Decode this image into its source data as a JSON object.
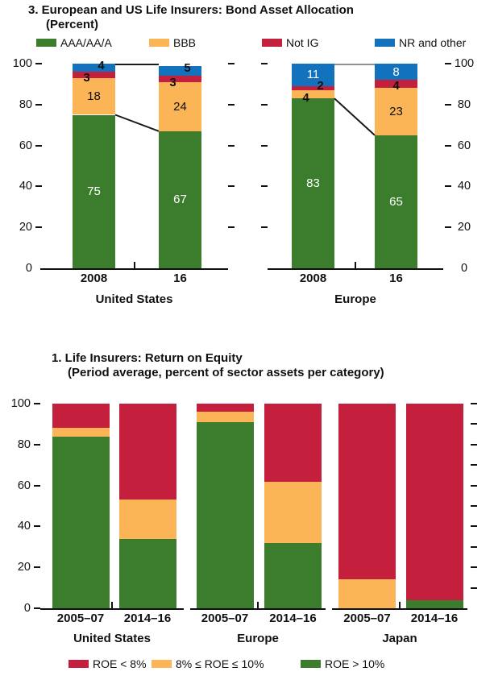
{
  "chart_data": [
    {
      "id": "bond-asset-allocation",
      "type": "bar",
      "stacked": true,
      "title": "3. European and US Life Insurers: Bond Asset Allocation",
      "subtitle": "(Percent)",
      "ylim": [
        0,
        100
      ],
      "yticks_left": [
        0,
        20,
        40,
        60,
        80,
        100
      ],
      "yticks_right": [
        0,
        20,
        40,
        60,
        80,
        100
      ],
      "grid": false,
      "legend_position": "top",
      "legend": [
        {
          "name": "AAA/AA/A",
          "color": "#3c7d2d"
        },
        {
          "name": "BBB",
          "color": "#fbb556"
        },
        {
          "name": "Not IG",
          "color": "#c41f3d"
        },
        {
          "name": "NR and other",
          "color": "#1272bd"
        }
      ],
      "stack_order_bottom_to_top": [
        "AAA/AA/A",
        "BBB",
        "Not IG",
        "NR and other"
      ],
      "value_labels_shown": true,
      "groups": [
        {
          "label": "United States",
          "categories": [
            "2008",
            "16"
          ],
          "values": {
            "AAA/AA/A": [
              75,
              67
            ],
            "BBB": [
              18,
              24
            ],
            "Not IG": [
              3,
              3
            ],
            "NR and other": [
              4,
              5
            ]
          }
        },
        {
          "label": "Europe",
          "categories": [
            "2008",
            "16"
          ],
          "values": {
            "AAA/AA/A": [
              83,
              65
            ],
            "BBB": [
              4,
              23
            ],
            "Not IG": [
              2,
              4
            ],
            "NR and other": [
              11,
              8
            ]
          }
        }
      ],
      "connector_lines": [
        {
          "group": "United States",
          "at": "bar tops (100)",
          "color": "#1a1a1a"
        },
        {
          "group": "United States",
          "from": 75,
          "to": 67,
          "at": "top of AAA/AA/A",
          "color": "#1a1a1a"
        },
        {
          "group": "Europe",
          "at": "bar tops (100)",
          "color": "#8f8f8f"
        },
        {
          "group": "Europe",
          "from": 83,
          "to": 65,
          "at": "top of AAA/AA/A",
          "color": "#1a1a1a"
        }
      ]
    },
    {
      "id": "life-insurers-roe",
      "type": "bar",
      "stacked": true,
      "title": "1. Life Insurers: Return on Equity",
      "subtitle": "(Period average, percent of sector assets per category)",
      "ylim": [
        0,
        100
      ],
      "yticks_left": [
        0,
        20,
        40,
        60,
        80,
        100
      ],
      "yticks_right_minor": [
        10,
        20,
        30,
        40,
        50,
        60,
        70,
        80,
        90,
        100
      ],
      "grid": false,
      "legend_position": "bottom",
      "legend": [
        {
          "name": "ROE < 8%",
          "color": "#c41f3d"
        },
        {
          "name": "8% ≤ ROE ≤ 10%",
          "color": "#fbb556"
        },
        {
          "name": "ROE > 10%",
          "color": "#3c7d2d"
        }
      ],
      "stack_order_bottom_to_top": [
        "ROE > 10%",
        "8% ≤ ROE ≤ 10%",
        "ROE < 8%"
      ],
      "value_labels_shown": false,
      "groups": [
        {
          "label": "United States",
          "categories": [
            "2005–07",
            "2014–16"
          ],
          "values": {
            "ROE > 10%": [
              84,
              34
            ],
            "8% ≤ ROE ≤ 10%": [
              4,
              19
            ],
            "ROE < 8%": [
              12,
              47
            ]
          }
        },
        {
          "label": "Europe",
          "categories": [
            "2005–07",
            "2014–16"
          ],
          "values": {
            "ROE > 10%": [
              91,
              32
            ],
            "8% ≤ ROE ≤ 10%": [
              5,
              30
            ],
            "ROE < 8%": [
              4,
              38
            ]
          }
        },
        {
          "label": "Japan",
          "categories": [
            "2005–07",
            "2014–16"
          ],
          "values": {
            "ROE > 10%": [
              0,
              4
            ],
            "8% ≤ ROE ≤ 10%": [
              14,
              0
            ],
            "ROE < 8%": [
              86,
              96
            ]
          }
        }
      ]
    }
  ],
  "colors": {
    "green": "#3c7d2d",
    "yellow": "#fbb556",
    "red": "#c41f3d",
    "blue": "#1272bd",
    "text": "#111111",
    "gray_connector": "#8f8f8f"
  }
}
